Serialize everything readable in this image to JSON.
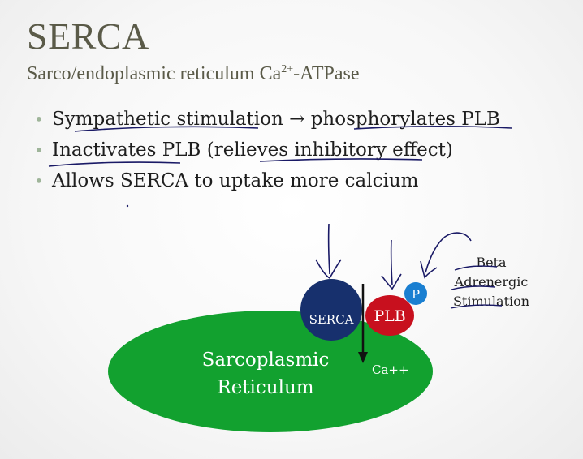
{
  "slide": {
    "title": "SERCA",
    "subtitle": {
      "prefix": "Sarco/endoplasmic reticulum Ca",
      "superscript": "2+",
      "suffix": "-ATPase"
    },
    "bullets": [
      {
        "text": "Sympathetic stimulation → phosphorylates PLB"
      },
      {
        "text": "Inactivates PLB (relieves inhibitory effect)"
      },
      {
        "text": "Allows SERCA to uptake more calcium"
      }
    ]
  },
  "diagram": {
    "reticulum_line1": "Sarcoplasmic",
    "reticulum_line2": "Reticulum",
    "serca_label": "SERCA",
    "plb_label": "PLB",
    "phosphate_label": "P",
    "calcium_label": "Ca++",
    "annotation_line1": "Beta",
    "annotation_line2": "Adrenergic",
    "annotation_line3": "Stimulation",
    "colors": {
      "reticulum": "#12a12f",
      "serca": "#17306d",
      "plb": "#c8101e",
      "phosphate": "#1a7fd1",
      "bullet_dot": "#9fb59a",
      "title": "#5a5a48"
    }
  }
}
